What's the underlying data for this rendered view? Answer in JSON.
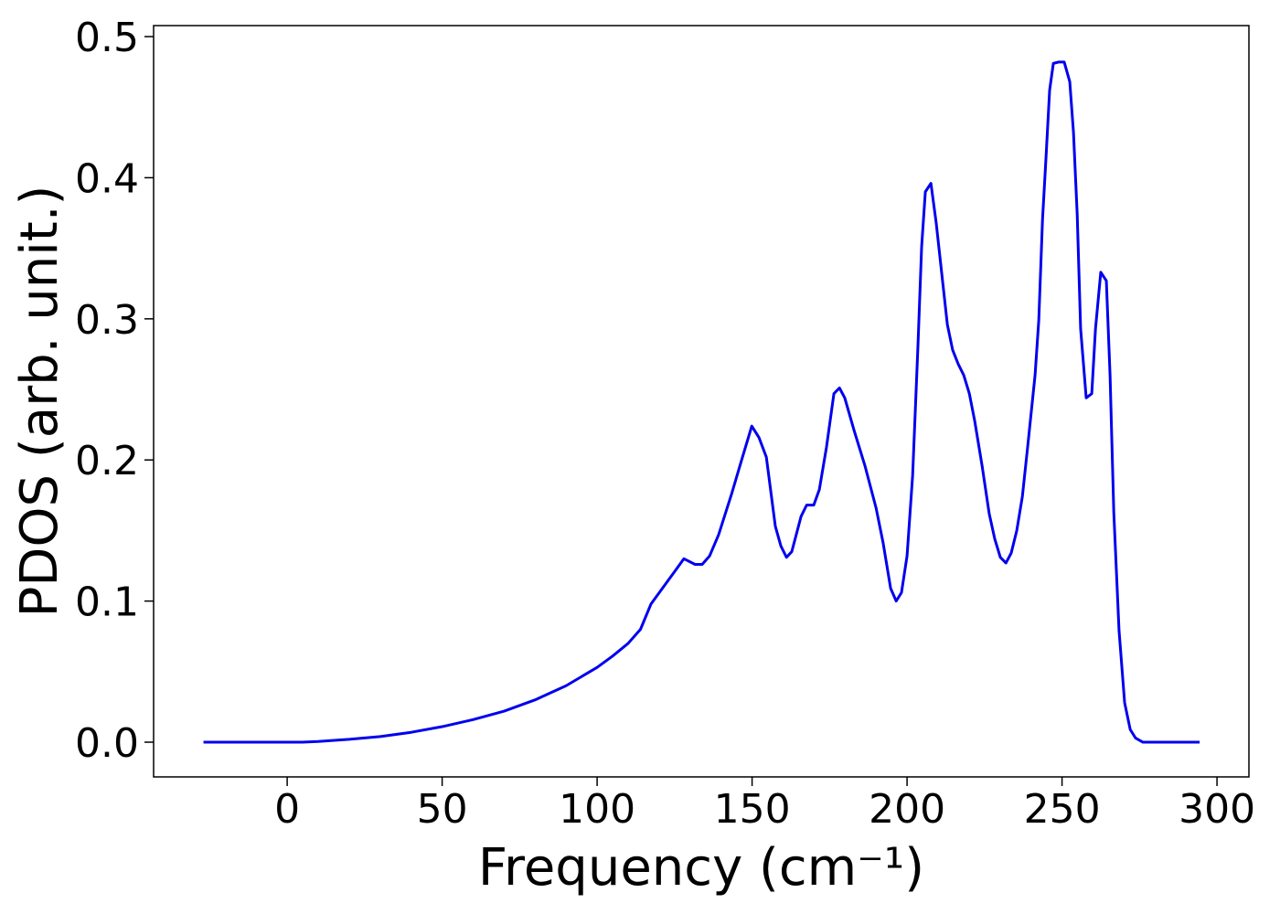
{
  "chart_data": {
    "type": "line",
    "xlabel": "Frequency (cm⁻¹)",
    "ylabel": "PDOS (arb. unit.)",
    "x": [
      -27,
      0,
      5,
      10,
      20,
      30,
      40,
      50,
      60,
      70,
      80,
      90,
      100,
      105,
      110,
      114,
      117.4,
      125.7,
      128.0,
      131.6,
      133.9,
      136.3,
      139.2,
      143.4,
      146.9,
      149.9,
      152.2,
      154.6,
      157.5,
      159.3,
      161.1,
      162.8,
      165.8,
      167.6,
      169.9,
      171.7,
      174.0,
      176.4,
      178.2,
      179.9,
      182.9,
      186.4,
      190.0,
      192.3,
      194.7,
      196.5,
      198.2,
      200.0,
      201.8,
      203.5,
      204.7,
      205.9,
      207.7,
      209.4,
      211.2,
      213.0,
      214.7,
      216.5,
      218.3,
      220.1,
      221.8,
      224.2,
      226.5,
      228.3,
      230.1,
      231.9,
      233.6,
      235.4,
      237.2,
      238.9,
      241.3,
      242.5,
      243.7,
      244.8,
      246.0,
      247.2,
      249.0,
      250.7,
      252.5,
      253.7,
      254.9,
      256.0,
      257.8,
      259.6,
      260.8,
      262.5,
      264.3,
      265.5,
      266.7,
      268.4,
      270.2,
      272.0,
      273.7,
      276.1,
      294.4
    ],
    "series": [
      {
        "name": "PDOS",
        "color": "#0000ee",
        "values": [
          0,
          0,
          0,
          0.0005,
          0.002,
          0.004,
          0.007,
          0.011,
          0.016,
          0.022,
          0.03,
          0.04,
          0.053,
          0.061,
          0.07,
          0.08,
          0.098,
          0.123,
          0.13,
          0.126,
          0.126,
          0.132,
          0.147,
          0.176,
          0.202,
          0.224,
          0.216,
          0.202,
          0.153,
          0.139,
          0.131,
          0.135,
          0.16,
          0.168,
          0.168,
          0.179,
          0.209,
          0.247,
          0.251,
          0.244,
          0.221,
          0.196,
          0.166,
          0.141,
          0.109,
          0.1,
          0.106,
          0.132,
          0.189,
          0.28,
          0.351,
          0.39,
          0.396,
          0.368,
          0.332,
          0.296,
          0.278,
          0.268,
          0.26,
          0.247,
          0.228,
          0.196,
          0.162,
          0.144,
          0.131,
          0.127,
          0.134,
          0.15,
          0.174,
          0.209,
          0.26,
          0.299,
          0.37,
          0.413,
          0.462,
          0.481,
          0.482,
          0.482,
          0.468,
          0.432,
          0.374,
          0.293,
          0.244,
          0.247,
          0.293,
          0.333,
          0.327,
          0.26,
          0.163,
          0.079,
          0.028,
          0.009,
          0.003,
          0,
          0
        ]
      }
    ],
    "xlim": [
      -43.1,
      310.3
    ],
    "ylim": [
      -0.0246,
      0.5078
    ],
    "xticks": [
      0,
      50,
      100,
      150,
      200,
      250,
      300
    ],
    "yticks": [
      {
        "value": 0,
        "label": "0.0"
      },
      0.1,
      0.2,
      0.3,
      0.4,
      0.5
    ],
    "grid": false
  }
}
